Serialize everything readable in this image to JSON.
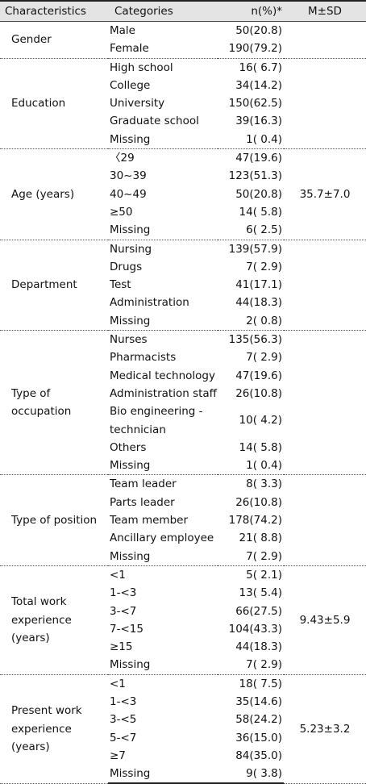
{
  "header": {
    "characteristics": "Characteristics",
    "categories": "Categories",
    "n_pct": "n(%)*",
    "m_sd": "M±SD"
  },
  "groups": [
    {
      "characteristic": "Gender",
      "msd": "",
      "rows": [
        {
          "category": "Male",
          "n": "50(20.8)"
        },
        {
          "category": "Female",
          "n": "190(79.2)"
        }
      ]
    },
    {
      "characteristic": "Education",
      "msd": "",
      "rows": [
        {
          "category": "High school",
          "n": "16( 6.7)"
        },
        {
          "category": "College",
          "n": "34(14.2)"
        },
        {
          "category": "University",
          "n": "150(62.5)"
        },
        {
          "category": "Graduate school",
          "n": "39(16.3)"
        },
        {
          "category": "Missing",
          "n": "1( 0.4)"
        }
      ]
    },
    {
      "characteristic": "Age (years)",
      "msd": "35.7±7.0",
      "rows": [
        {
          "category": "〈29",
          "n": "47(19.6)"
        },
        {
          "category": "30~39",
          "n": "123(51.3)"
        },
        {
          "category": "40~49",
          "n": "50(20.8)"
        },
        {
          "category": "≥50",
          "n": "14( 5.8)"
        },
        {
          "category": "Missing",
          "n": "6( 2.5)"
        }
      ]
    },
    {
      "characteristic": "Department",
      "msd": "",
      "rows": [
        {
          "category": "Nursing",
          "n": "139(57.9)"
        },
        {
          "category": "Drugs",
          "n": "7( 2.9)"
        },
        {
          "category": "Test",
          "n": "41(17.1)"
        },
        {
          "category": "Administration",
          "n": "44(18.3)"
        },
        {
          "category": "Missing",
          "n": "2( 0.8)"
        }
      ]
    },
    {
      "characteristic": "Type of occupation",
      "msd": "",
      "rows": [
        {
          "category": "Nurses",
          "n": "135(56.3)"
        },
        {
          "category": "Pharmacists",
          "n": "7( 2.9)"
        },
        {
          "category": "Medical technology",
          "n": "47(19.6)"
        },
        {
          "category": "Administration staff",
          "n": "26(10.8)"
        },
        {
          "category": "Bio engineering -technician",
          "n": "10( 4.2)",
          "wrap": true
        },
        {
          "category": "Others",
          "n": "14( 5.8)"
        },
        {
          "category": "Missing",
          "n": "1( 0.4)"
        }
      ]
    },
    {
      "characteristic": "Type of position",
      "msd": "",
      "rows": [
        {
          "category": "Team leader",
          "n": "8( 3.3)"
        },
        {
          "category": "Parts leader",
          "n": "26(10.8)"
        },
        {
          "category": "Team member",
          "n": "178(74.2)"
        },
        {
          "category": "Ancillary employee",
          "n": "21( 8.8)"
        },
        {
          "category": "Missing",
          "n": "7( 2.9)"
        }
      ]
    },
    {
      "characteristic": "Total work experience (years)",
      "msd": "9.43±5.9",
      "rows": [
        {
          "category": "<1",
          "n": "5( 2.1)"
        },
        {
          "category": "1-<3",
          "n": "13( 5.4)"
        },
        {
          "category": "3-<7",
          "n": "66(27.5)"
        },
        {
          "category": "7-<15",
          "n": "104(43.3)"
        },
        {
          "category": "≥15",
          "n": "44(18.3)"
        },
        {
          "category": "Missing",
          "n": "7( 2.9)"
        }
      ]
    },
    {
      "characteristic": "Present work experience (years)",
      "msd": "5.23±3.2",
      "rows": [
        {
          "category": "<1",
          "n": "18( 7.5)"
        },
        {
          "category": "1-<3",
          "n": "35(14.6)"
        },
        {
          "category": "3-<5",
          "n": "58(24.2)"
        },
        {
          "category": "5-<7",
          "n": "36(15.0)"
        },
        {
          "category": "≥7",
          "n": "84(35.0)"
        },
        {
          "category": "Missing",
          "n": "9( 3.8)"
        }
      ]
    }
  ]
}
